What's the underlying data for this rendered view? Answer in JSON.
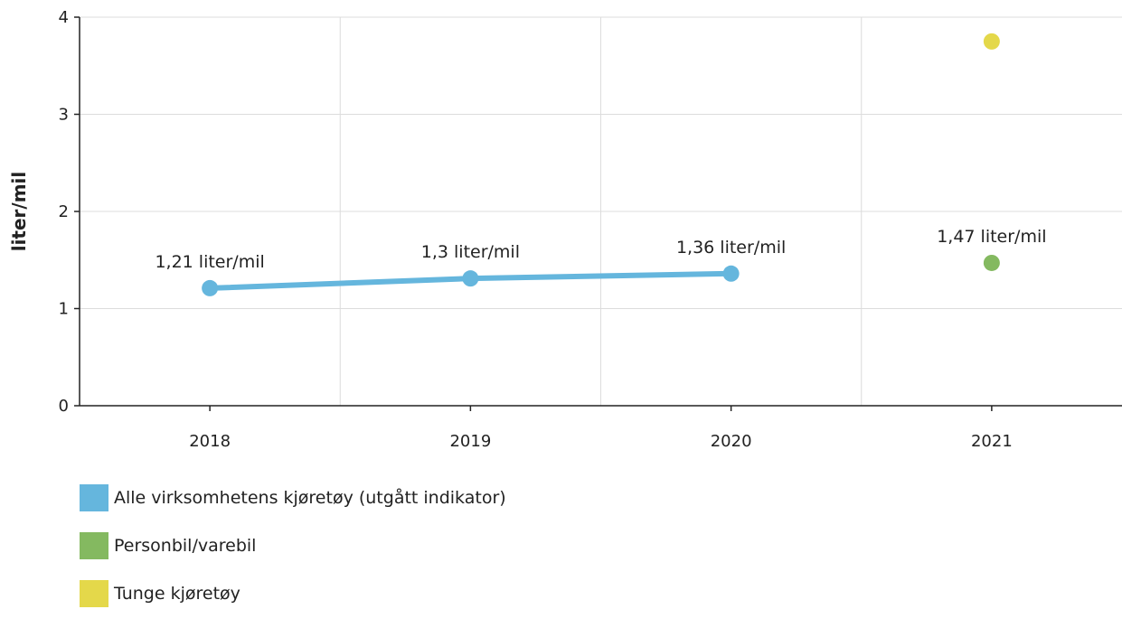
{
  "chart_data": {
    "type": "line",
    "xlabel": "",
    "ylabel": "liter/mil",
    "categories": [
      "2018",
      "2019",
      "2020",
      "2021"
    ],
    "ylim": [
      0,
      4
    ],
    "yticks": [
      "0",
      "1",
      "2",
      "3",
      "4"
    ],
    "grid": true,
    "legend_position": "bottom-left",
    "series": [
      {
        "name": "Alle virksomhetens kjøretøy (utgått indikator)",
        "color": "#65b6dd",
        "style": "line",
        "points": [
          {
            "x": "2018",
            "y": 1.21,
            "label": "1,21 liter/mil"
          },
          {
            "x": "2019",
            "y": 1.31,
            "label": "1,3 liter/mil"
          },
          {
            "x": "2020",
            "y": 1.36,
            "label": "1,36 liter/mil"
          }
        ]
      },
      {
        "name": "Personbil/varebil",
        "color": "#84b960",
        "style": "point",
        "points": [
          {
            "x": "2021",
            "y": 1.47,
            "label": "1,47 liter/mil"
          }
        ]
      },
      {
        "name": "Tunge kjøretøy",
        "color": "#e4d84a",
        "style": "point",
        "points": [
          {
            "x": "2021",
            "y": 3.75,
            "label": ""
          }
        ]
      }
    ]
  }
}
